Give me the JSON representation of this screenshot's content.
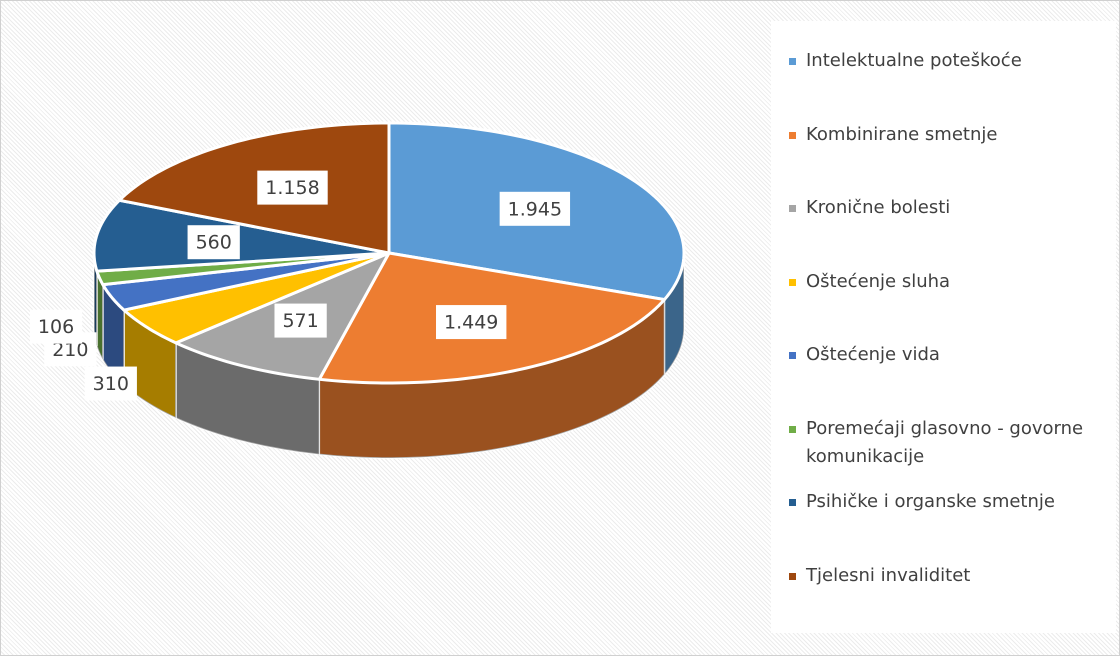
{
  "chart_data": {
    "type": "pie3d",
    "categories": [
      "Intelektualne poteškoće",
      "Kombinirane smetnje",
      "Kronične bolesti",
      "Oštećenje sluha",
      "Oštećenje vida",
      "Poremećaji glasovno - govorne komunikacije",
      "Psihičke i organske smetnje",
      "Tjelesni invaliditet"
    ],
    "values": [
      1945,
      1449,
      571,
      310,
      210,
      106,
      560,
      1158
    ],
    "value_labels": [
      "1.945",
      "1.449",
      "571",
      "310",
      "210",
      "106",
      "560",
      "1.158"
    ],
    "colors": [
      "#5b9bd5",
      "#ed7d31",
      "#a5a5a5",
      "#ffc000",
      "#4472c4",
      "#70ad47",
      "#255e91",
      "#9e480e"
    ],
    "legend": "right"
  }
}
